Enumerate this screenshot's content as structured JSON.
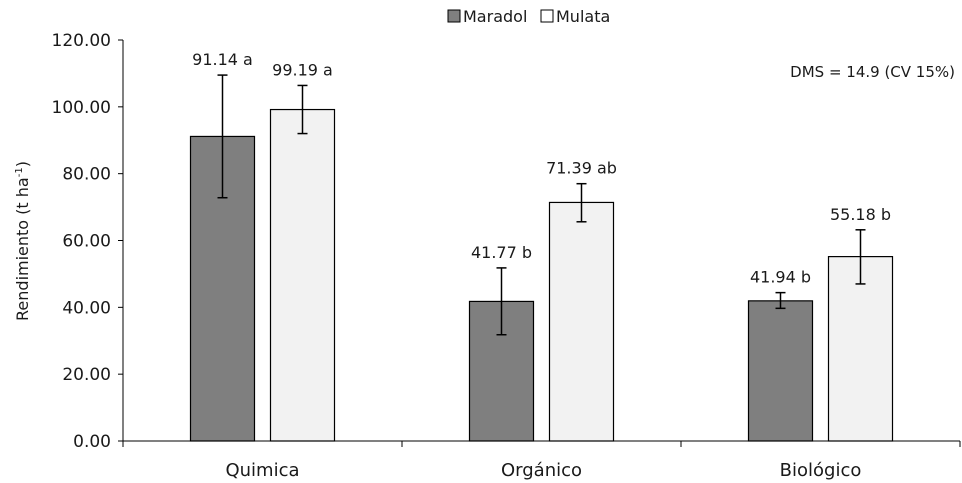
{
  "chart_data": {
    "type": "bar",
    "categories": [
      "Quimica",
      "Orgánico",
      "Biológico"
    ],
    "series": [
      {
        "name": "Maradol",
        "color": "#7f7f7f",
        "values": [
          91.14,
          41.77,
          41.94
        ],
        "error_low": [
          72.8,
          31.8,
          39.7
        ],
        "error_high": [
          109.5,
          51.8,
          44.4
        ],
        "labels": [
          "91.14 a",
          "41.77 b",
          "41.94 b"
        ]
      },
      {
        "name": "Mulata",
        "color": "#f2f2f2",
        "values": [
          99.19,
          71.39,
          55.18
        ],
        "error_low": [
          92.0,
          65.6,
          47.0
        ],
        "error_high": [
          106.4,
          77.0,
          63.2
        ],
        "labels": [
          "99.19 a",
          "71.39 ab",
          "55.18 b"
        ]
      }
    ],
    "ylim": [
      0,
      120
    ],
    "yticks": [
      "0.00",
      "20.00",
      "40.00",
      "60.00",
      "80.00",
      "100.00",
      "120.00"
    ],
    "ylabel": "Rendimiento (t ha",
    "ylabel_sup": "-1",
    "ylabel_end": ")",
    "xlabel": "",
    "annotation": "DMS = 14.9 (CV 15%)",
    "legend_position": "top-center",
    "grid": false
  }
}
